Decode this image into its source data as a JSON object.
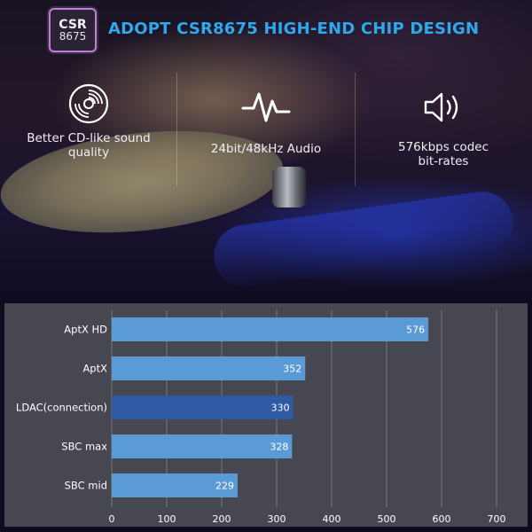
{
  "banner": {
    "chip_line1": "CSR",
    "chip_line2": "8675",
    "headline": "ADOPT CSR8675 HIGH-END CHIP DESIGN"
  },
  "features": [
    {
      "icon": "cd-disc-icon",
      "line1": "Better CD-like sound",
      "line2": "quality"
    },
    {
      "icon": "waveform-icon",
      "line1": "24bit/48kHz  Audio",
      "line2": ""
    },
    {
      "icon": "speaker-icon",
      "line1": "576kbps codec",
      "line2": "bit-rates"
    }
  ],
  "colors": {
    "headline": "#2fa9ee",
    "bar": "#5b9bd5",
    "bar_highlight": "#2e5aa3",
    "panel": "#474751"
  },
  "chart_data": {
    "type": "bar",
    "orientation": "horizontal",
    "categories": [
      "AptX HD",
      "AptX",
      "LDAC(connection)",
      "SBC max",
      "SBC mid"
    ],
    "values": [
      576,
      352,
      330,
      328,
      229
    ],
    "highlight_index": 2,
    "xlim": [
      0,
      700
    ],
    "xticks": [
      0,
      100,
      200,
      300,
      400,
      500,
      600,
      700
    ],
    "grid": true,
    "title": "",
    "xlabel": "",
    "ylabel": ""
  }
}
